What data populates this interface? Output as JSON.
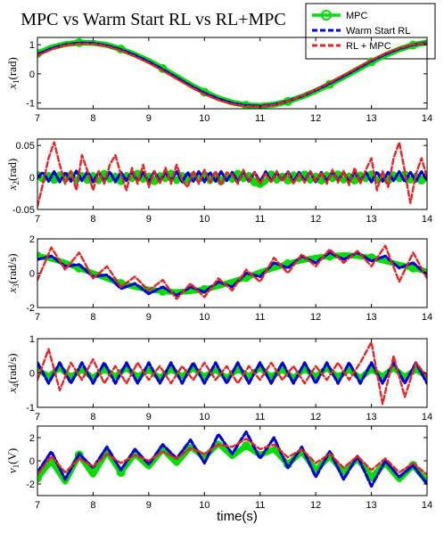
{
  "chart_data": {
    "type": "line",
    "title": "MPC vs Warm Start RL vs RL+MPC",
    "xlabel": "time(s)",
    "legend": {
      "placement": "top-right",
      "entries": [
        {
          "name": "MPC",
          "color": "#00dd00",
          "style": "solid",
          "marker": "circle"
        },
        {
          "name": "Warm Start RL",
          "color": "#0000dd",
          "style": "dashed"
        },
        {
          "name": "RL + MPC",
          "color": "#ee2222",
          "style": "dashed"
        }
      ]
    },
    "colors": {
      "mpc": "#00dd00",
      "warm": "#0000dd",
      "rlmpc": "#ee2222"
    },
    "xlim": [
      7,
      14
    ],
    "xticks": [
      7,
      8,
      9,
      10,
      11,
      12,
      13,
      14
    ],
    "grid": false,
    "subplots": [
      {
        "ylabel_var": "x",
        "ylabel_sub": "1",
        "ylabel_unit": "(rad)",
        "ylim": [
          -1.2,
          1.25
        ],
        "yticks": [
          -1,
          0,
          1
        ],
        "ytick_labels": [
          "-1",
          "0",
          "1"
        ],
        "signal": "x1",
        "x": [
          7.0,
          7.25,
          7.5,
          7.75,
          8.0,
          8.25,
          8.5,
          8.75,
          9.0,
          9.25,
          9.5,
          9.75,
          10.0,
          10.25,
          10.5,
          10.75,
          11.0,
          11.25,
          11.5,
          11.75,
          12.0,
          12.25,
          12.5,
          12.75,
          13.0,
          13.25,
          13.5,
          13.75,
          14.0
        ],
        "series": [
          {
            "key": "mpc",
            "values": [
              0.7,
              0.9,
              1.02,
              1.07,
              1.06,
              0.99,
              0.85,
              0.66,
              0.44,
              0.18,
              -0.1,
              -0.38,
              -0.63,
              -0.84,
              -0.99,
              -1.08,
              -1.1,
              -1.06,
              -0.95,
              -0.79,
              -0.59,
              -0.36,
              -0.11,
              0.15,
              0.41,
              0.64,
              0.84,
              0.99,
              1.08
            ]
          },
          {
            "key": "warm",
            "values": [
              0.66,
              0.87,
              1.0,
              1.06,
              1.05,
              0.97,
              0.83,
              0.64,
              0.41,
              0.15,
              -0.13,
              -0.41,
              -0.66,
              -0.86,
              -1.01,
              -1.09,
              -1.11,
              -1.06,
              -0.94,
              -0.77,
              -0.56,
              -0.33,
              -0.08,
              0.18,
              0.44,
              0.67,
              0.86,
              1.0,
              1.07
            ]
          },
          {
            "key": "rlmpc",
            "values": [
              0.62,
              0.84,
              0.98,
              1.04,
              1.03,
              0.95,
              0.8,
              0.6,
              0.37,
              0.11,
              -0.17,
              -0.45,
              -0.7,
              -0.9,
              -1.04,
              -1.11,
              -1.12,
              -1.07,
              -0.94,
              -0.76,
              -0.54,
              -0.3,
              -0.05,
              0.21,
              0.47,
              0.7,
              0.88,
              1.01,
              1.06
            ]
          }
        ]
      },
      {
        "ylabel_var": "x",
        "ylabel_sub": "2",
        "ylabel_unit": "(rad)",
        "ylim": [
          -0.05,
          0.06
        ],
        "yticks": [
          -0.05,
          0,
          0.05
        ],
        "ytick_labels": [
          "-0.05",
          "0",
          "0.05"
        ],
        "signal": "x2",
        "x": [
          7.0,
          7.1,
          7.2,
          7.3,
          7.4,
          7.5,
          7.6,
          7.7,
          7.8,
          7.9,
          8.0,
          8.1,
          8.2,
          8.3,
          8.4,
          8.5,
          8.6,
          8.7,
          8.8,
          8.9,
          9.0,
          9.1,
          9.2,
          9.3,
          9.4,
          9.5,
          9.6,
          9.7,
          9.8,
          9.9,
          10.0,
          10.1,
          10.2,
          10.3,
          10.4,
          10.5,
          10.6,
          10.7,
          10.8,
          10.9,
          11.0,
          11.1,
          11.2,
          11.3,
          11.4,
          11.5,
          11.6,
          11.7,
          11.8,
          11.9,
          12.0,
          12.1,
          12.2,
          12.3,
          12.4,
          12.5,
          12.6,
          12.7,
          12.8,
          12.9,
          13.0,
          13.1,
          13.2,
          13.3,
          13.4,
          13.5,
          13.6,
          13.7,
          13.8,
          13.9,
          14.0
        ],
        "series": [
          {
            "key": "mpc",
            "values": [
              0.003,
              -0.004,
              0.004,
              -0.003,
              0.005,
              -0.004,
              0.003,
              -0.005,
              0.004,
              -0.003,
              0.004,
              -0.006,
              0.005,
              -0.004,
              0.003,
              -0.005,
              0.004,
              -0.003,
              0.005,
              -0.004,
              0.003,
              -0.005,
              0.004,
              -0.003,
              0.005,
              -0.006,
              0.004,
              -0.003,
              0.005,
              -0.004,
              0.003,
              -0.006,
              0.004,
              -0.005,
              0.003,
              -0.004,
              0.005,
              -0.003,
              0.004,
              -0.007,
              -0.012,
              -0.006,
              0.004,
              -0.005,
              0.003,
              -0.004,
              0.005,
              -0.003,
              0.004,
              -0.005,
              0.003,
              -0.004,
              0.005,
              -0.003,
              0.004,
              -0.005,
              0.003,
              -0.004,
              0.005,
              -0.003,
              0.004,
              -0.005,
              0.003,
              -0.004,
              0.005,
              -0.003,
              0.004,
              -0.005,
              0.003,
              -0.004,
              0.005
            ]
          },
          {
            "key": "warm",
            "values": [
              0.0,
              0.008,
              -0.006,
              0.009,
              -0.007,
              0.008,
              -0.006,
              0.01,
              -0.005,
              0.009,
              -0.007,
              0.008,
              -0.006,
              0.009,
              -0.007,
              0.008,
              -0.005,
              0.009,
              -0.006,
              0.008,
              -0.007,
              0.009,
              -0.006,
              0.008,
              -0.005,
              0.009,
              -0.007,
              0.008,
              -0.006,
              0.009,
              -0.007,
              0.008,
              -0.006,
              0.009,
              -0.005,
              0.008,
              -0.007,
              0.009,
              -0.006,
              0.008,
              -0.007,
              0.009,
              -0.006,
              0.008,
              -0.005,
              0.009,
              -0.007,
              0.008,
              -0.006,
              0.009,
              -0.007,
              0.008,
              -0.006,
              0.009,
              -0.005,
              0.008,
              -0.007,
              0.009,
              -0.006,
              0.008,
              -0.007,
              0.009,
              -0.006,
              0.008,
              -0.005,
              0.009,
              -0.007,
              0.008,
              -0.006,
              0.009,
              -0.004
            ]
          },
          {
            "key": "rlmpc",
            "values": [
              -0.045,
              -0.01,
              0.03,
              0.055,
              0.02,
              -0.01,
              0.01,
              -0.02,
              0.035,
              0.01,
              -0.02,
              0.01,
              -0.01,
              0.02,
              0.035,
              0.005,
              -0.02,
              0.015,
              -0.01,
              0.02,
              -0.015,
              0.01,
              -0.01,
              0.015,
              -0.01,
              0.02,
              -0.005,
              -0.015,
              0.01,
              -0.01,
              0.012,
              -0.008,
              0.01,
              -0.012,
              0.008,
              0.004,
              -0.01,
              0.012,
              -0.006,
              0.008,
              -0.01,
              0.006,
              -0.008,
              0.01,
              -0.006,
              0.008,
              -0.01,
              0.006,
              -0.008,
              0.01,
              -0.006,
              0.008,
              -0.01,
              0.012,
              -0.008,
              0.01,
              -0.012,
              0.015,
              -0.01,
              0.012,
              0.03,
              -0.02,
              0.01,
              -0.015,
              0.03,
              0.055,
              0.01,
              -0.04,
              0.005,
              0.03,
              0.0
            ]
          }
        ]
      },
      {
        "ylabel_var": "x",
        "ylabel_sub": "3",
        "ylabel_unit": "(rad/s)",
        "ylim": [
          -2,
          2
        ],
        "yticks": [
          -2,
          0,
          2
        ],
        "ytick_labels": [
          "-2",
          "0",
          "2"
        ],
        "signal": "x3",
        "x": [
          7.0,
          7.25,
          7.5,
          7.75,
          8.0,
          8.25,
          8.5,
          8.75,
          9.0,
          9.25,
          9.5,
          9.75,
          10.0,
          10.25,
          10.5,
          10.75,
          11.0,
          11.25,
          11.5,
          11.75,
          12.0,
          12.25,
          12.5,
          12.75,
          13.0,
          13.25,
          13.5,
          13.75,
          14.0
        ],
        "series": [
          {
            "key": "mpc",
            "values": [
              1.0,
              0.85,
              0.6,
              0.3,
              0.0,
              -0.3,
              -0.6,
              -0.8,
              -0.95,
              -1.05,
              -1.1,
              -1.05,
              -0.95,
              -0.75,
              -0.5,
              -0.25,
              0.05,
              0.3,
              0.55,
              0.75,
              0.9,
              1.0,
              1.05,
              1.0,
              0.9,
              0.7,
              0.5,
              0.3,
              0.1
            ]
          },
          {
            "key": "warm",
            "values": [
              0.8,
              1.0,
              0.4,
              0.5,
              -0.2,
              -0.1,
              -0.9,
              -0.6,
              -1.2,
              -0.8,
              -1.3,
              -0.8,
              -1.1,
              -0.5,
              -0.8,
              0.0,
              -0.2,
              0.6,
              0.3,
              1.0,
              0.6,
              1.2,
              0.8,
              1.2,
              0.7,
              1.0,
              0.3,
              0.6,
              -0.1
            ]
          },
          {
            "key": "rlmpc",
            "values": [
              -0.4,
              1.5,
              0.2,
              1.2,
              -0.3,
              0.4,
              -0.8,
              -0.2,
              -1.0,
              -0.4,
              -1.5,
              -0.6,
              -1.4,
              -0.3,
              -1.0,
              0.2,
              -0.5,
              0.9,
              0.0,
              1.1,
              0.4,
              1.4,
              0.6,
              1.3,
              0.4,
              1.6,
              -0.5,
              1.2,
              -0.3
            ]
          }
        ]
      },
      {
        "ylabel_var": "x",
        "ylabel_sub": "4",
        "ylabel_unit": "(rad/s)",
        "ylim": [
          -1,
          1
        ],
        "yticks": [
          -1,
          0,
          1
        ],
        "ytick_labels": [
          "-1",
          "0",
          "1"
        ],
        "signal": "x4",
        "x": [
          7.0,
          7.2,
          7.4,
          7.6,
          7.8,
          8.0,
          8.2,
          8.4,
          8.6,
          8.8,
          9.0,
          9.2,
          9.4,
          9.6,
          9.8,
          10.0,
          10.2,
          10.4,
          10.6,
          10.8,
          11.0,
          11.2,
          11.4,
          11.6,
          11.8,
          12.0,
          12.2,
          12.4,
          12.6,
          12.8,
          13.0,
          13.2,
          13.4,
          13.6,
          13.8,
          14.0
        ],
        "series": [
          {
            "key": "mpc",
            "values": [
              0.1,
              -0.1,
              0.15,
              -0.12,
              0.1,
              -0.15,
              0.12,
              -0.1,
              0.15,
              -0.12,
              0.1,
              -0.15,
              0.12,
              -0.1,
              0.15,
              -0.12,
              0.1,
              -0.15,
              0.12,
              -0.1,
              0.15,
              -0.12,
              0.1,
              -0.15,
              0.12,
              -0.1,
              0.15,
              -0.12,
              0.1,
              -0.15,
              0.12,
              -0.1,
              0.15,
              -0.12,
              0.1,
              -0.1
            ]
          },
          {
            "key": "warm",
            "values": [
              0.3,
              -0.3,
              0.3,
              -0.3,
              0.3,
              -0.3,
              0.3,
              -0.3,
              0.3,
              -0.3,
              0.3,
              -0.3,
              0.3,
              -0.3,
              0.3,
              -0.3,
              0.3,
              -0.3,
              0.3,
              -0.3,
              0.3,
              -0.3,
              0.3,
              -0.3,
              0.3,
              -0.3,
              0.3,
              -0.3,
              0.3,
              -0.3,
              0.3,
              -0.3,
              0.3,
              -0.3,
              0.3,
              -0.3
            ]
          },
          {
            "key": "rlmpc",
            "values": [
              -0.2,
              0.7,
              -0.5,
              0.3,
              -0.2,
              0.4,
              -0.3,
              0.2,
              -0.3,
              0.3,
              -0.2,
              0.2,
              -0.3,
              0.2,
              -0.2,
              0.3,
              -0.2,
              0.2,
              -0.3,
              0.2,
              -0.2,
              0.3,
              -0.2,
              0.2,
              -0.3,
              0.2,
              -0.2,
              0.3,
              -0.2,
              0.3,
              0.9,
              -0.9,
              0.5,
              -0.7,
              0.3,
              -0.1
            ]
          }
        ]
      },
      {
        "ylabel_var": "v",
        "ylabel_sub": "1",
        "ylabel_unit": "(V)",
        "ylim": [
          -3,
          3
        ],
        "yticks": [
          -2,
          0,
          2
        ],
        "ytick_labels": [
          "-2",
          "0",
          "2"
        ],
        "signal": "v1",
        "x": [
          7.0,
          7.25,
          7.5,
          7.75,
          8.0,
          8.25,
          8.5,
          8.75,
          9.0,
          9.25,
          9.5,
          9.75,
          10.0,
          10.25,
          10.5,
          10.75,
          11.0,
          11.25,
          11.5,
          11.75,
          12.0,
          12.25,
          12.5,
          12.75,
          13.0,
          13.25,
          13.5,
          13.75,
          14.0
        ],
        "series": [
          {
            "key": "mpc",
            "values": [
              -1.5,
              0.0,
              -1.8,
              0.5,
              -1.2,
              0.8,
              -1.0,
              0.6,
              -0.5,
              1.0,
              -0.2,
              1.2,
              0.3,
              1.5,
              0.4,
              1.3,
              0.5,
              1.0,
              -0.3,
              0.8,
              -0.8,
              0.4,
              -1.0,
              0.2,
              -1.4,
              -0.2,
              -1.6,
              -0.4,
              -1.8
            ]
          },
          {
            "key": "warm",
            "values": [
              -1.0,
              0.8,
              -1.6,
              0.6,
              -0.6,
              1.2,
              -0.8,
              1.0,
              -0.3,
              1.4,
              0.2,
              1.8,
              -0.2,
              2.3,
              0.6,
              2.5,
              0.2,
              2.0,
              -0.6,
              1.2,
              -1.4,
              0.8,
              -1.6,
              0.4,
              -2.2,
              0.0,
              -1.4,
              -0.4,
              -2.0
            ]
          },
          {
            "key": "rlmpc",
            "values": [
              -1.2,
              0.4,
              -1.0,
              0.2,
              -0.5,
              0.6,
              -0.2,
              0.5,
              0.0,
              0.8,
              0.2,
              1.1,
              0.6,
              1.4,
              1.2,
              1.9,
              1.0,
              1.4,
              0.3,
              1.0,
              -0.2,
              0.6,
              -0.6,
              0.4,
              -0.8,
              0.2,
              -1.0,
              -0.2,
              -1.2
            ]
          }
        ]
      }
    ]
  }
}
